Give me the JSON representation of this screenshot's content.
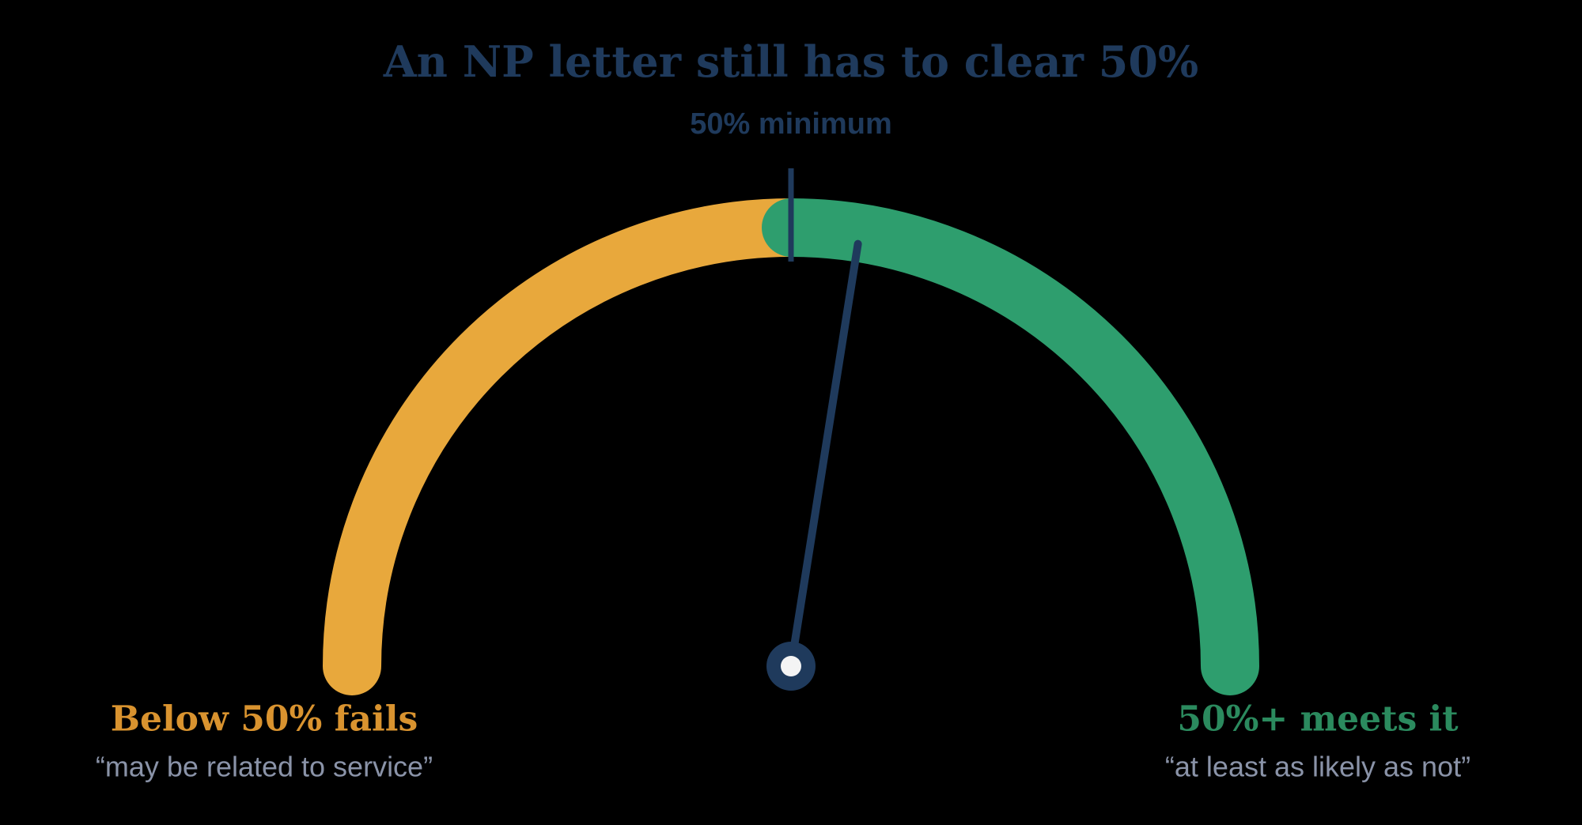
{
  "chart_data": {
    "type": "gauge",
    "title": "An NP letter still has to clear 50%",
    "range": [
      0,
      100
    ],
    "value": 55,
    "threshold": 50,
    "threshold_label": "50% minimum",
    "segments": [
      {
        "name": "Below 50% fails",
        "note": "“may be related to service”",
        "color": "#e8a83c",
        "label_color": "#d9932f",
        "from": 0,
        "to": 50
      },
      {
        "name": "50%+ meets it",
        "note": "“at least as likely as not”",
        "color": "#2e9e6e",
        "label_color": "#2b8a5e",
        "from": 50,
        "to": 100
      }
    ],
    "needle_color": "#1f3a5c"
  }
}
